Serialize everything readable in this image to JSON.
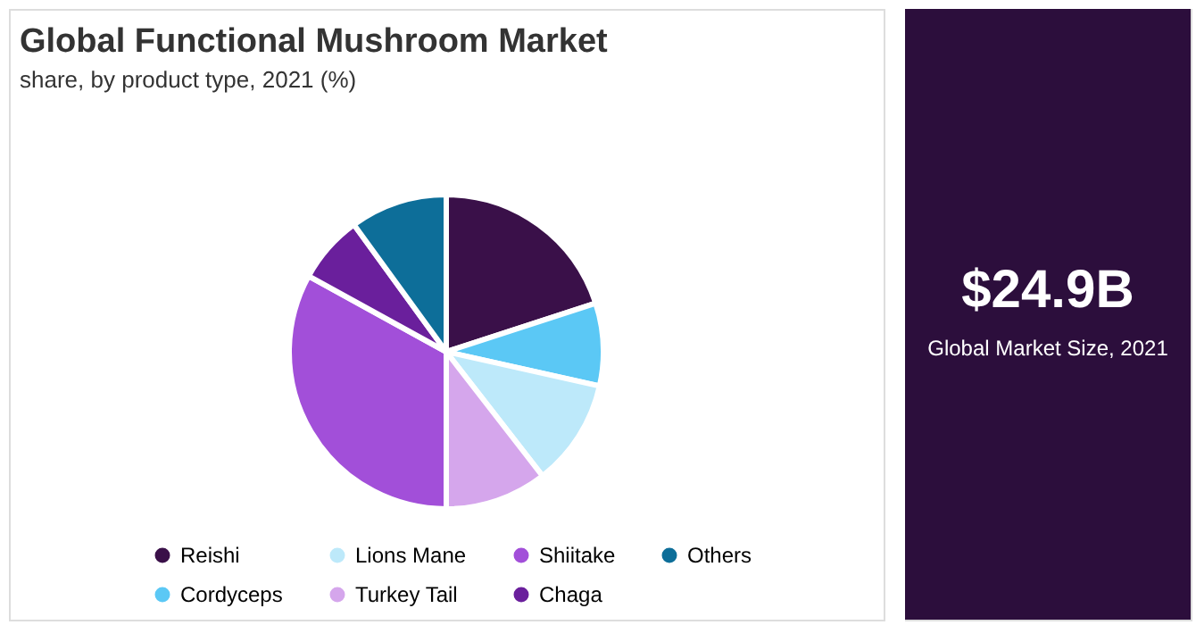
{
  "chart_data": [
    {
      "type": "pie",
      "title": "Global Functional Mushroom Market",
      "subtitle": "share, by product type, 2021 (%)",
      "categories": [
        "Reishi",
        "Cordyceps",
        "Lions Mane",
        "Turkey Tail",
        "Shiitake",
        "Chaga",
        "Others"
      ],
      "values": [
        20,
        8.5,
        11,
        10.5,
        33,
        7,
        10
      ],
      "colors": [
        "#3a1049",
        "#5bc8f5",
        "#bde9fa",
        "#d5a6ec",
        "#a24fd9",
        "#6a1f9c",
        "#0d6e99"
      ],
      "legend": "bottom"
    },
    {
      "type": "other",
      "title": "$24.9B",
      "annotations": [
        "Global Market Size, 2021"
      ]
    }
  ]
}
